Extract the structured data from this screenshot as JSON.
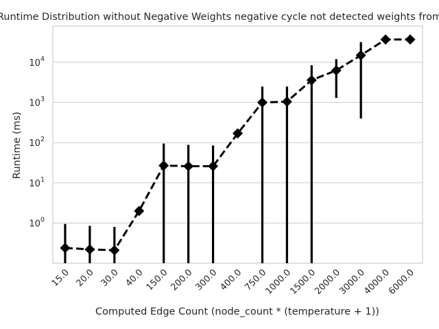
{
  "chart_data": {
    "type": "line",
    "title": "Runtime Distribution without Negative Weights negative cycle not detected weights from",
    "xlabel": "Computed Edge Count (node_count * (temperature + 1))",
    "ylabel": "Runtime (ms)",
    "y_scale": "log",
    "ylim": [
      0.1,
      80000
    ],
    "grid": "horizontal",
    "categories": [
      "15.0",
      "20.0",
      "30.0",
      "40.0",
      "150.0",
      "200.0",
      "300.0",
      "400.0",
      "750.0",
      "1000.0",
      "1500.0",
      "2000.0",
      "3000.0",
      "4000.0",
      "6000.0"
    ],
    "y_ticks": [
      {
        "base": "10",
        "exp": "0"
      },
      {
        "base": "10",
        "exp": "1"
      },
      {
        "base": "10",
        "exp": "2"
      },
      {
        "base": "10",
        "exp": "3"
      },
      {
        "base": "10",
        "exp": "4"
      }
    ],
    "series": [
      {
        "values": [
          0.24,
          0.22,
          0.21,
          2.0,
          27,
          26,
          26,
          170,
          1000,
          1050,
          3600,
          6300,
          15000,
          37000,
          37000
        ],
        "error_low": [
          0.1,
          0.1,
          0.1,
          null,
          0.1,
          0.1,
          0.1,
          null,
          0.1,
          0.1,
          0.1,
          1300,
          400,
          null,
          null
        ],
        "error_high": [
          0.95,
          0.85,
          0.8,
          null,
          95,
          88,
          85,
          null,
          2500,
          2500,
          8500,
          12000,
          32000,
          null,
          null
        ],
        "color": "#000000",
        "linestyle": "dashed",
        "marker": "diamond"
      }
    ]
  }
}
